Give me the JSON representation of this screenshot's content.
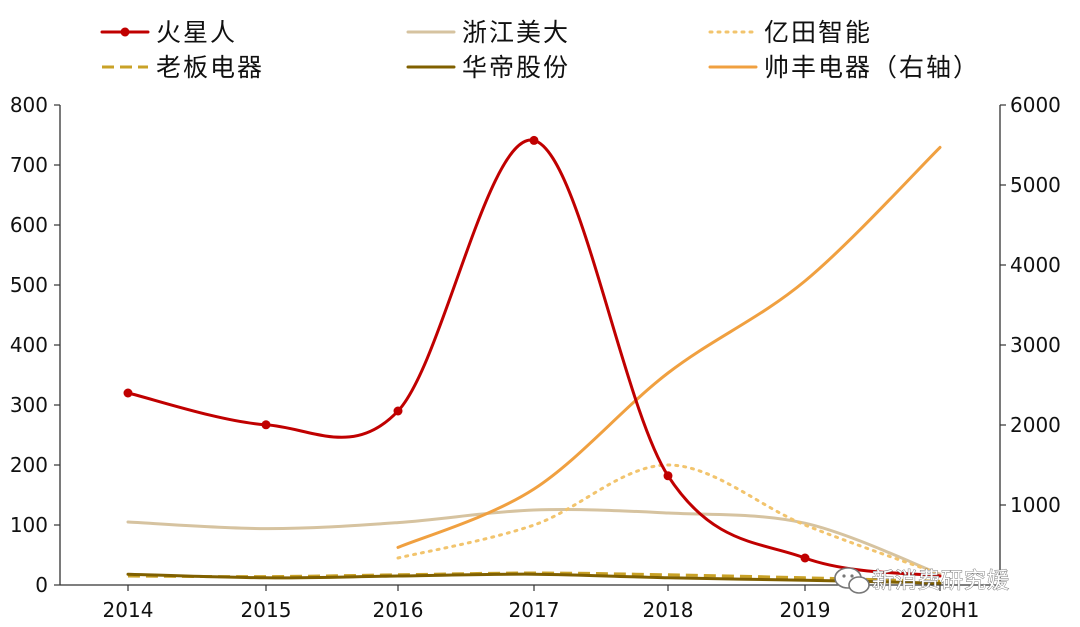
{
  "chart_data": {
    "type": "line",
    "categories": [
      "2014",
      "2015",
      "2016",
      "2017",
      "2018",
      "2019",
      "2020H1"
    ],
    "y_left": {
      "ylim": [
        0,
        800
      ],
      "ticks": [
        0,
        100,
        200,
        300,
        400,
        500,
        600,
        700,
        800
      ]
    },
    "y_right": {
      "ylim": [
        0,
        6000
      ],
      "ticks": [
        1000,
        2000,
        3000,
        4000,
        5000,
        6000
      ]
    },
    "grid": false,
    "legend_placement": "top",
    "series": [
      {
        "name": "火星人",
        "axis": "left",
        "color": "#c00000",
        "style": "solid-markers",
        "values": [
          320,
          267,
          290,
          741,
          182,
          45,
          15
        ]
      },
      {
        "name": "浙江美大",
        "axis": "left",
        "color": "#d6c3a0",
        "style": "solid",
        "values": [
          105,
          94,
          104,
          125,
          120,
          103,
          18
        ]
      },
      {
        "name": "亿田智能",
        "axis": "left",
        "color": "#f2c46d",
        "style": "dotted",
        "values": [
          null,
          null,
          45,
          100,
          200,
          100,
          18
        ]
      },
      {
        "name": "老板电器",
        "axis": "left",
        "color": "#c9a227",
        "style": "dashed",
        "values": [
          15,
          14,
          17,
          20,
          17,
          12,
          6
        ]
      },
      {
        "name": "华帝股份",
        "axis": "left",
        "color": "#806000",
        "style": "solid",
        "values": [
          18,
          12,
          15,
          18,
          12,
          8,
          3
        ]
      },
      {
        "name": "帅丰电器（右轴）",
        "axis": "right",
        "color": "#f0a040",
        "style": "solid",
        "values": [
          null,
          null,
          470,
          1200,
          2650,
          3800,
          5470
        ]
      }
    ]
  },
  "watermark": {
    "text": "新消费研究媛",
    "icon": "wechat-icon"
  }
}
